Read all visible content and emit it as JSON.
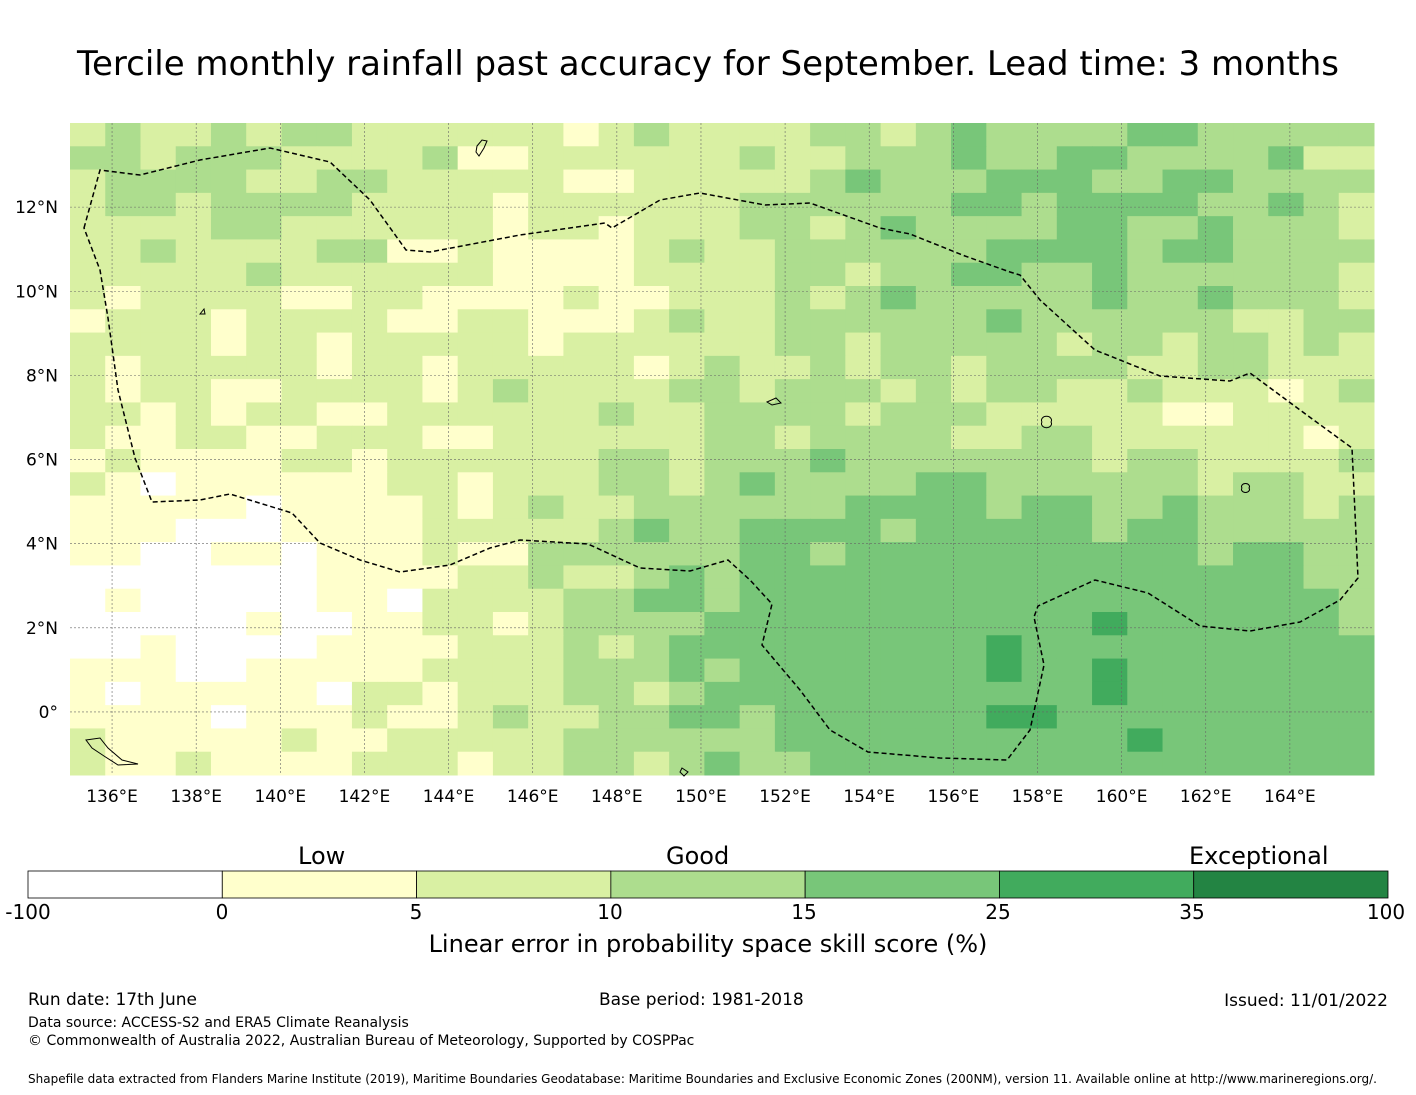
{
  "title": "Tercile monthly rainfall past accuracy for September. Lead time: 3 months",
  "map": {
    "lon_range": [
      135,
      166
    ],
    "lat_range": [
      -1.5,
      14
    ],
    "lon_ticks": [
      "136°E",
      "138°E",
      "140°E",
      "142°E",
      "144°E",
      "146°E",
      "148°E",
      "150°E",
      "152°E",
      "154°E",
      "156°E",
      "158°E",
      "160°E",
      "162°E",
      "164°E"
    ],
    "lat_ticks": [
      "12°N",
      "10°N",
      "8°N",
      "6°N",
      "4°N",
      "2°N",
      "0°"
    ],
    "lon_tick_values": [
      136,
      138,
      140,
      142,
      144,
      146,
      148,
      150,
      152,
      154,
      156,
      158,
      160,
      162,
      164
    ],
    "lat_tick_values": [
      12,
      10,
      8,
      6,
      4,
      2,
      0
    ],
    "grid": true,
    "boundary_style": "dashed"
  },
  "colorbar": {
    "categories": [
      "Low",
      "Good",
      "Exceptional"
    ],
    "ticks": [
      "-100",
      "0",
      "5",
      "10",
      "15",
      "25",
      "35",
      "100"
    ],
    "colors": [
      "#ffffff",
      "#ffffcc",
      "#d9f0a3",
      "#addd8e",
      "#78c679",
      "#41ab5d",
      "#238443"
    ],
    "label": "Linear error in probability space skill score (%)"
  },
  "footer": {
    "run_date": "Run date: 17th June",
    "base_period": "Base period: 1981-2018",
    "issued": "Issued: 11/01/2022",
    "data_source": "Data source: ACCESS-S2 and ERA5 Climate Reanalysis",
    "copyright": "© Commonwealth of Australia 2022, Australian Bureau of Meteorology, Supported by COSPPac",
    "shapefile": "Shapefile data extracted from Flanders Marine Institute (2019), Maritime Boundaries Geodatabase: Maritime Boundaries and Exclusive Economic Zones (200NM), version 11. Available online at http://www.marineregions.org/."
  }
}
